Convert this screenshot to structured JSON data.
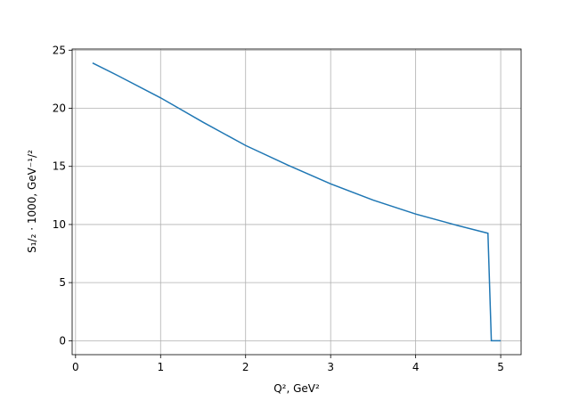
{
  "chart_data": {
    "type": "line",
    "x_label": "Q², GeV²",
    "y_label": "S₁/₂ · 1000, GeV⁻¹/²",
    "x": [
      0.2,
      0.5,
      1.0,
      1.5,
      2.0,
      2.5,
      3.0,
      3.5,
      4.0,
      4.5,
      4.85,
      4.89,
      5.0
    ],
    "series": [
      {
        "color": "#1f77b4",
        "values": [
          23.9,
          22.8,
          20.9,
          18.8,
          16.8,
          15.1,
          13.5,
          12.1,
          10.9,
          9.9,
          9.25,
          0,
          0
        ]
      }
    ],
    "xlim": [
      -0.04,
      5.24
    ],
    "ylim": [
      -1.2,
      25.1
    ],
    "xticks": [
      0,
      1,
      2,
      3,
      4,
      5
    ],
    "yticks": [
      0,
      5,
      10,
      15,
      20,
      25
    ],
    "grid": true
  }
}
